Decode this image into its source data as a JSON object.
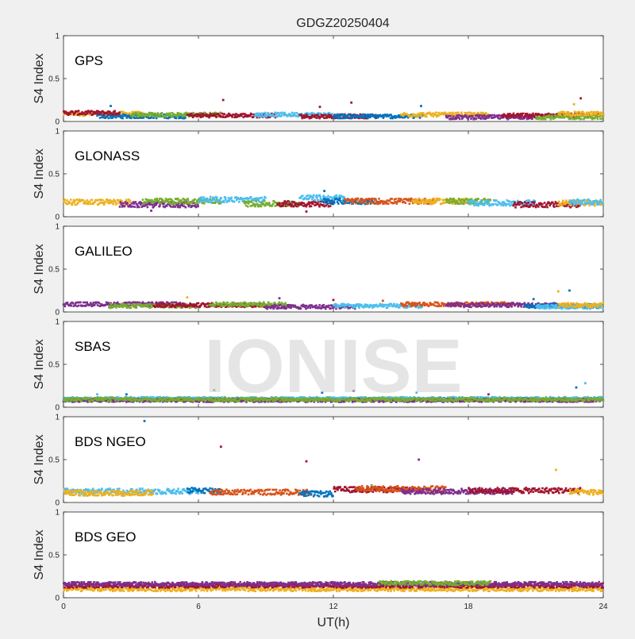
{
  "chart_data": {
    "type": "scatter",
    "title": "GDGZ20250404",
    "xlabel": "UT(h)",
    "ylabel": "S4 Index",
    "xlim": [
      0,
      24
    ],
    "ylim": [
      0,
      1
    ],
    "xticks": [
      0,
      6,
      12,
      18,
      24
    ],
    "yticks": [
      0,
      0.5,
      1
    ],
    "watermark": "IONISE",
    "colors": [
      "#0072bd",
      "#d95319",
      "#edb120",
      "#7e2f8e",
      "#77ac30",
      "#4dbeee",
      "#a2142f"
    ],
    "panels": [
      {
        "name": "GPS",
        "baseline": 0.07,
        "spread": 0.03,
        "segments": [
          {
            "color": 2,
            "x": [
              0,
              3.5
            ],
            "level": 0.09
          },
          {
            "color": 0,
            "x": [
              1.5,
              5.5
            ],
            "level": 0.06
          },
          {
            "color": 6,
            "x": [
              0,
              2.5
            ],
            "level": 0.1
          },
          {
            "color": 4,
            "x": [
              3,
              7
            ],
            "level": 0.08
          },
          {
            "color": 6,
            "x": [
              5.5,
              9.5
            ],
            "level": 0.07
          },
          {
            "color": 5,
            "x": [
              8.5,
              12
            ],
            "level": 0.08
          },
          {
            "color": 6,
            "x": [
              10.5,
              14
            ],
            "level": 0.06
          },
          {
            "color": 0,
            "x": [
              12,
              16
            ],
            "level": 0.06
          },
          {
            "color": 2,
            "x": [
              15,
              19
            ],
            "level": 0.08
          },
          {
            "color": 3,
            "x": [
              17,
              21
            ],
            "level": 0.05
          },
          {
            "color": 6,
            "x": [
              19.5,
              24
            ],
            "level": 0.07
          },
          {
            "color": 4,
            "x": [
              21,
              24
            ],
            "level": 0.05
          },
          {
            "color": 2,
            "x": [
              22,
              24
            ],
            "level": 0.09
          }
        ],
        "outliers": [
          {
            "x": 2.1,
            "y": 0.18,
            "color": 0
          },
          {
            "x": 7.1,
            "y": 0.25,
            "color": 6
          },
          {
            "x": 11.4,
            "y": 0.17,
            "color": 6
          },
          {
            "x": 12.8,
            "y": 0.22,
            "color": 6
          },
          {
            "x": 15.9,
            "y": 0.18,
            "color": 0
          },
          {
            "x": 23.0,
            "y": 0.27,
            "color": 6
          },
          {
            "x": 22.7,
            "y": 0.2,
            "color": 2
          }
        ]
      },
      {
        "name": "GLONASS",
        "baseline": 0.16,
        "spread": 0.04,
        "segments": [
          {
            "color": 2,
            "x": [
              0,
              3
            ],
            "level": 0.17
          },
          {
            "color": 3,
            "x": [
              2.5,
              6
            ],
            "level": 0.14
          },
          {
            "color": 4,
            "x": [
              3.5,
              7
            ],
            "level": 0.18
          },
          {
            "color": 5,
            "x": [
              6,
              9
            ],
            "level": 0.2
          },
          {
            "color": 4,
            "x": [
              8,
              10.5
            ],
            "level": 0.15
          },
          {
            "color": 6,
            "x": [
              9.5,
              12
            ],
            "level": 0.15
          },
          {
            "color": 5,
            "x": [
              10.5,
              12.5
            ],
            "level": 0.22
          },
          {
            "color": 0,
            "x": [
              11.5,
              14
            ],
            "level": 0.18
          },
          {
            "color": 1,
            "x": [
              12.5,
              16.5
            ],
            "level": 0.18
          },
          {
            "color": 2,
            "x": [
              15.5,
              18
            ],
            "level": 0.18
          },
          {
            "color": 4,
            "x": [
              17,
              19
            ],
            "level": 0.18
          },
          {
            "color": 5,
            "x": [
              18,
              21
            ],
            "level": 0.16
          },
          {
            "color": 6,
            "x": [
              20,
              23
            ],
            "level": 0.14
          },
          {
            "color": 2,
            "x": [
              22,
              24
            ],
            "level": 0.16
          },
          {
            "color": 5,
            "x": [
              22.5,
              24
            ],
            "level": 0.17
          }
        ],
        "outliers": [
          {
            "x": 11.6,
            "y": 0.3,
            "color": 0
          },
          {
            "x": 3.9,
            "y": 0.07,
            "color": 3
          },
          {
            "x": 10.8,
            "y": 0.06,
            "color": 6
          }
        ]
      },
      {
        "name": "GALILEO",
        "baseline": 0.08,
        "spread": 0.03,
        "segments": [
          {
            "color": 3,
            "x": [
              0,
              5.5
            ],
            "level": 0.09
          },
          {
            "color": 4,
            "x": [
              2,
              6
            ],
            "level": 0.07
          },
          {
            "color": 6,
            "x": [
              4,
              9
            ],
            "level": 0.08
          },
          {
            "color": 4,
            "x": [
              6.5,
              10
            ],
            "level": 0.09
          },
          {
            "color": 3,
            "x": [
              9,
              13
            ],
            "level": 0.06
          },
          {
            "color": 5,
            "x": [
              12,
              16
            ],
            "level": 0.07
          },
          {
            "color": 1,
            "x": [
              15,
              20
            ],
            "level": 0.09
          },
          {
            "color": 3,
            "x": [
              17,
              22
            ],
            "level": 0.08
          },
          {
            "color": 0,
            "x": [
              20.5,
              24
            ],
            "level": 0.07
          },
          {
            "color": 5,
            "x": [
              21,
              24
            ],
            "level": 0.06
          },
          {
            "color": 2,
            "x": [
              22,
              24
            ],
            "level": 0.08
          }
        ],
        "outliers": [
          {
            "x": 5.5,
            "y": 0.17,
            "color": 2
          },
          {
            "x": 22.0,
            "y": 0.24,
            "color": 2
          },
          {
            "x": 22.5,
            "y": 0.25,
            "color": 0
          },
          {
            "x": 12.0,
            "y": 0.14,
            "color": 6
          },
          {
            "x": 9.6,
            "y": 0.16,
            "color": 3
          },
          {
            "x": 14.2,
            "y": 0.13,
            "color": 1
          },
          {
            "x": 20.9,
            "y": 0.15,
            "color": 0
          }
        ]
      },
      {
        "name": "SBAS",
        "baseline": 0.09,
        "spread": 0.025,
        "segments": [
          {
            "color": 0,
            "x": [
              0,
              24
            ],
            "level": 0.09
          },
          {
            "color": 5,
            "x": [
              0,
              24
            ],
            "level": 0.1
          },
          {
            "color": 3,
            "x": [
              0,
              24
            ],
            "level": 0.08
          },
          {
            "color": 4,
            "x": [
              0,
              24
            ],
            "level": 0.09
          }
        ],
        "outliers": [
          {
            "x": 1.5,
            "y": 0.15,
            "color": 5
          },
          {
            "x": 2.8,
            "y": 0.15,
            "color": 0
          },
          {
            "x": 6.7,
            "y": 0.2,
            "color": 4
          },
          {
            "x": 11.5,
            "y": 0.17,
            "color": 0
          },
          {
            "x": 12.9,
            "y": 0.19,
            "color": 3
          },
          {
            "x": 15.7,
            "y": 0.17,
            "color": 5
          },
          {
            "x": 18.9,
            "y": 0.15,
            "color": 3
          },
          {
            "x": 22.8,
            "y": 0.23,
            "color": 0
          },
          {
            "x": 23.2,
            "y": 0.28,
            "color": 5
          }
        ]
      },
      {
        "name": "BDS NGEO",
        "baseline": 0.12,
        "spread": 0.04,
        "segments": [
          {
            "color": 5,
            "x": [
              0,
              6
            ],
            "level": 0.13
          },
          {
            "color": 2,
            "x": [
              0,
              4
            ],
            "level": 0.11
          },
          {
            "color": 0,
            "x": [
              5.5,
              7
            ],
            "level": 0.14
          },
          {
            "color": 1,
            "x": [
              6.5,
              11
            ],
            "level": 0.12
          },
          {
            "color": 0,
            "x": [
              10.5,
              12
            ],
            "level": 0.1
          },
          {
            "color": 6,
            "x": [
              12,
              16
            ],
            "level": 0.15
          },
          {
            "color": 1,
            "x": [
              13,
              17
            ],
            "level": 0.16
          },
          {
            "color": 3,
            "x": [
              15,
              20
            ],
            "level": 0.13
          },
          {
            "color": 6,
            "x": [
              18,
              23
            ],
            "level": 0.14
          },
          {
            "color": 2,
            "x": [
              22.5,
              24
            ],
            "level": 0.12
          }
        ],
        "outliers": [
          {
            "x": 3.6,
            "y": 0.95,
            "color": 0
          },
          {
            "x": 7.0,
            "y": 0.65,
            "color": 6
          },
          {
            "x": 10.8,
            "y": 0.48,
            "color": 6
          },
          {
            "x": 15.8,
            "y": 0.5,
            "color": 3
          },
          {
            "x": 21.9,
            "y": 0.38,
            "color": 2
          },
          {
            "x": 13.7,
            "y": 0.2,
            "color": 4
          }
        ]
      },
      {
        "name": "BDS GEO",
        "baseline": 0.13,
        "spread": 0.03,
        "segments": [
          {
            "color": 2,
            "x": [
              0,
              24
            ],
            "level": 0.1
          },
          {
            "color": 6,
            "x": [
              0,
              24
            ],
            "level": 0.14
          },
          {
            "color": 3,
            "x": [
              0,
              24
            ],
            "level": 0.16
          },
          {
            "color": 4,
            "x": [
              14,
              19
            ],
            "level": 0.17
          }
        ],
        "outliers": []
      }
    ]
  }
}
